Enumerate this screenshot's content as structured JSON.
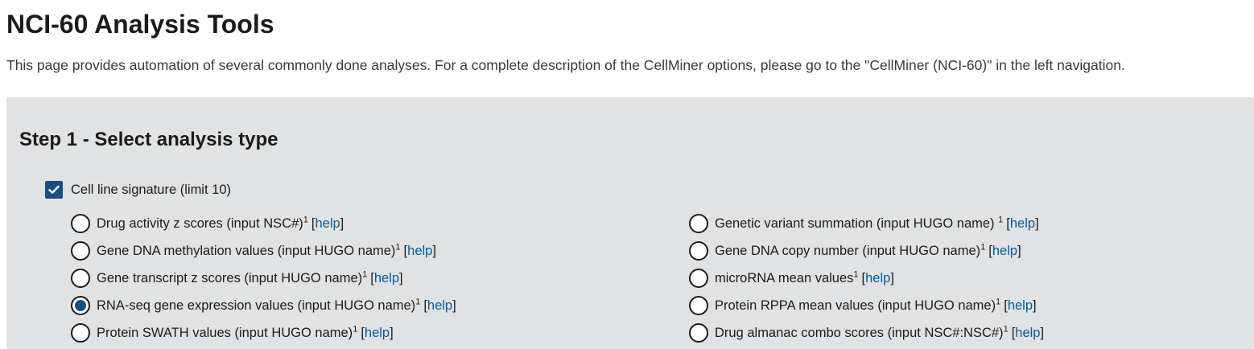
{
  "page": {
    "title": "NCI-60 Analysis Tools",
    "description": "This page provides automation of several commonly done analyses. For a complete description of the CellMiner options, please go to the \"CellMiner (NCI-60)\" in the left navigation."
  },
  "step1": {
    "title": "Step 1 - Select analysis type",
    "checkbox": {
      "label": "Cell line signature (limit 10)",
      "checked": true
    },
    "help_text": "help",
    "left_options": [
      {
        "label": "Drug activity z scores (input NSC#)",
        "sup": "1",
        "selected": false
      },
      {
        "label": "Gene DNA methylation values (input HUGO name)",
        "sup": "1",
        "selected": false
      },
      {
        "label": "Gene transcript z scores (input HUGO name)",
        "sup": "1",
        "selected": false
      },
      {
        "label": "RNA-seq gene expression values (input HUGO name)",
        "sup": "1",
        "selected": true
      },
      {
        "label": "Protein SWATH values (input HUGO name)",
        "sup": "1",
        "selected": false
      }
    ],
    "right_options": [
      {
        "label": "Genetic variant summation (input HUGO name) ",
        "sup": "1",
        "selected": false
      },
      {
        "label": "Gene DNA copy number (input HUGO name)",
        "sup": "1",
        "selected": false
      },
      {
        "label": "microRNA mean values",
        "sup": "1",
        "selected": false
      },
      {
        "label": "Protein RPPA mean values (input HUGO name)",
        "sup": "1",
        "selected": false
      },
      {
        "label": "Drug almanac combo scores (input NSC#:NSC#)",
        "sup": "1",
        "selected": false
      }
    ]
  },
  "colors": {
    "accent": "#1a4e80",
    "link": "#005ea2",
    "panel_bg": "#e1e2e3"
  }
}
